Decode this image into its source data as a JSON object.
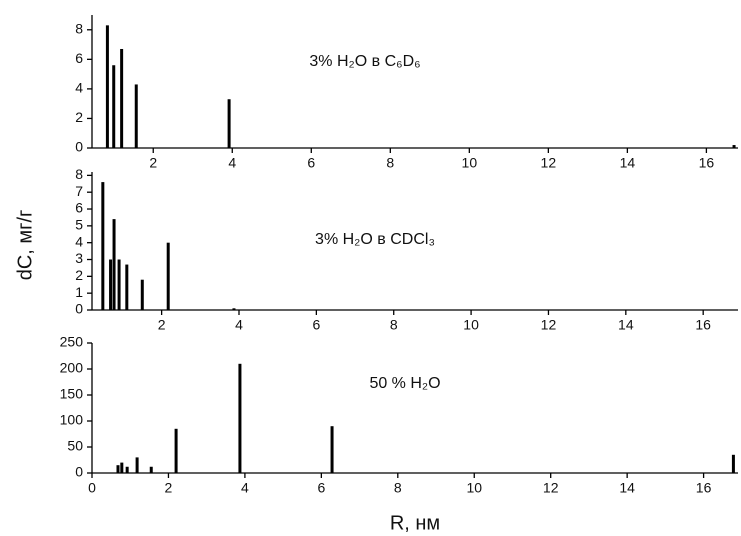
{
  "chart_data": [
    {
      "type": "bar",
      "title": "3% H₂O в C₆D₆",
      "color": "#000000",
      "x": [
        0.84,
        1.0,
        1.2,
        1.57,
        3.92,
        16.7
      ],
      "values": [
        8.3,
        5.6,
        6.7,
        4.3,
        3.3,
        0.2
      ],
      "xlim": [
        0.45,
        16.8
      ],
      "ylim": [
        0,
        9
      ],
      "xticks": [
        2,
        4,
        6,
        8,
        10,
        12,
        14,
        16
      ],
      "yticks": [
        0,
        2,
        4,
        6,
        8
      ]
    },
    {
      "type": "bar",
      "title": "3% H₂O в CDCl₃",
      "color": "#000000",
      "ylabel": "dC, мг/г",
      "x": [
        0.48,
        0.68,
        0.77,
        0.9,
        1.1,
        1.5,
        2.17,
        3.87
      ],
      "values": [
        7.6,
        3.0,
        5.4,
        3.0,
        2.7,
        1.8,
        4.0,
        0.1
      ],
      "xlim": [
        0.2,
        16.9
      ],
      "ylim": [
        0,
        8.2
      ],
      "xticks": [
        2,
        4,
        6,
        8,
        10,
        12,
        14,
        16
      ],
      "yticks": [
        0,
        1,
        2,
        3,
        4,
        5,
        6,
        7,
        8
      ]
    },
    {
      "type": "bar",
      "title": "50 % H₂O",
      "color": "#000000",
      "xlabel": "R, нм",
      "x": [
        0.68,
        0.78,
        0.92,
        1.18,
        1.55,
        2.2,
        3.87,
        6.28,
        16.78
      ],
      "values": [
        15,
        20,
        12,
        30,
        12,
        85,
        210,
        90,
        35
      ],
      "xlim": [
        0,
        16.9
      ],
      "ylim": [
        0,
        250
      ],
      "xticks": [
        0,
        2,
        4,
        6,
        8,
        10,
        12,
        14,
        16
      ],
      "yticks": [
        0,
        50,
        100,
        150,
        200,
        250
      ]
    }
  ]
}
